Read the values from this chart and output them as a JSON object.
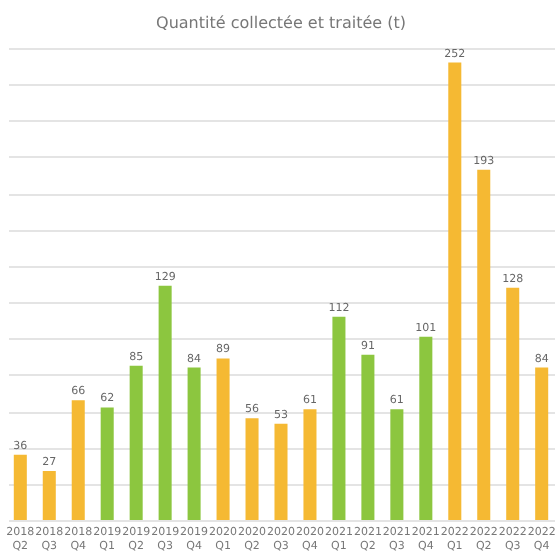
{
  "chart_data": {
    "type": "bar",
    "title": "Quantité collectée et traitée (t)",
    "categories": [
      "2018 Q2",
      "2018 Q3",
      "2018 Q4",
      "2019 Q1",
      "2019 Q2",
      "2019 Q3",
      "2019 Q4",
      "2020 Q1",
      "2020 Q2",
      "2020 Q3",
      "2020 Q4",
      "2021 Q1",
      "2021 Q2",
      "2021 Q3",
      "2021 Q4",
      "2022 Q1",
      "2022 Q2",
      "2022 Q3",
      "2022 Q4"
    ],
    "values": [
      36,
      27,
      66,
      62,
      85,
      129,
      84,
      89,
      56,
      53,
      61,
      112,
      91,
      61,
      101,
      252,
      193,
      128,
      84
    ],
    "colors": [
      "#f5b933",
      "#f5b933",
      "#f5b933",
      "#8cc63f",
      "#8cc63f",
      "#8cc63f",
      "#8cc63f",
      "#f5b933",
      "#f5b933",
      "#f5b933",
      "#f5b933",
      "#8cc63f",
      "#8cc63f",
      "#8cc63f",
      "#8cc63f",
      "#f5b933",
      "#f5b933",
      "#f5b933",
      "#f5b933"
    ],
    "grid": "y",
    "tick_labels": "x",
    "data_labels": true
  }
}
